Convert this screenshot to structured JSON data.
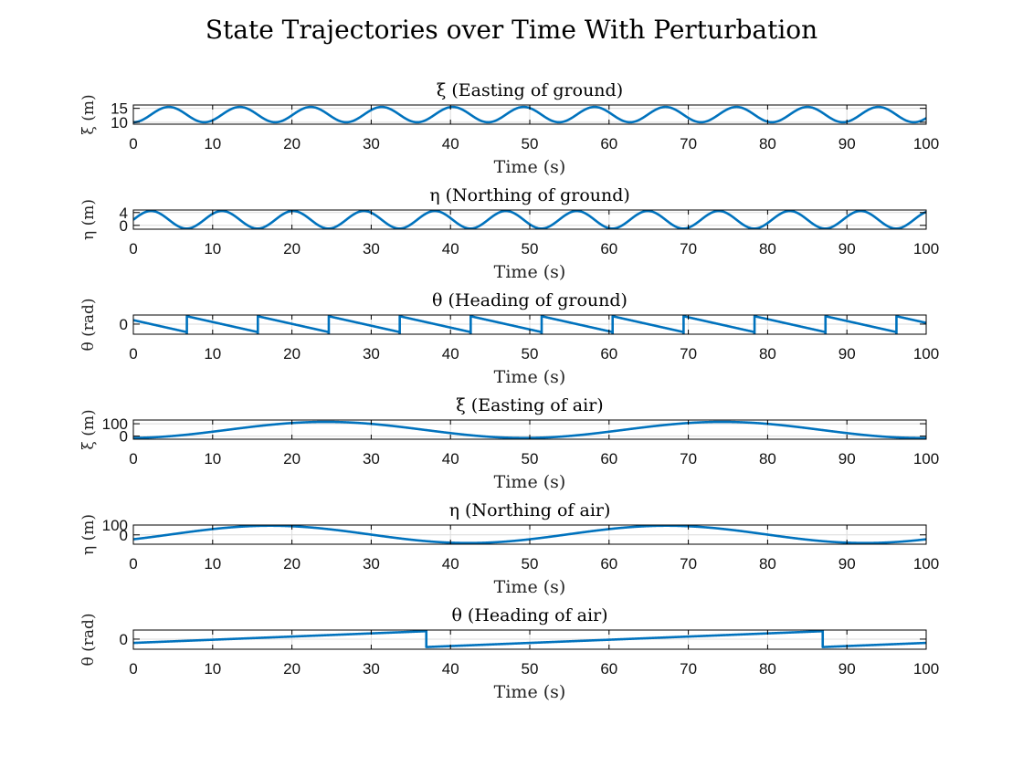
{
  "figure_title": "State Trajectories over Time With Perturbation",
  "colors": {
    "line": "#0072BD"
  },
  "chart_data": [
    {
      "type": "line",
      "title": "ξ (Easting of ground)",
      "xlabel": "Time (s)",
      "ylabel": "ξ (m)",
      "xlim": [
        0,
        100
      ],
      "ylim": [
        9.3,
        16.2
      ],
      "xticks": [
        0,
        10,
        20,
        30,
        40,
        50,
        60,
        70,
        80,
        90,
        100
      ],
      "yticks": [
        10,
        15
      ],
      "grid": true,
      "series": [
        {
          "kind": "sine",
          "mean": 12.75,
          "amplitude": 2.75,
          "period": 8.95,
          "phase": -1.5708
        }
      ]
    },
    {
      "type": "line",
      "title": "η (Northing of ground)",
      "xlabel": "Time (s)",
      "ylabel": "η (m)",
      "xlim": [
        0,
        100
      ],
      "ylim": [
        -1.2,
        4.8
      ],
      "xticks": [
        0,
        10,
        20,
        30,
        40,
        50,
        60,
        70,
        80,
        90,
        100
      ],
      "yticks": [
        0,
        4
      ],
      "grid": true,
      "series": [
        {
          "kind": "sine",
          "mean": 1.75,
          "amplitude": 2.75,
          "period": 8.95,
          "phase": 0
        }
      ]
    },
    {
      "type": "line",
      "title": "θ (Heading of ground)",
      "xlabel": "Time (s)",
      "ylabel": "θ (rad)",
      "xlim": [
        0,
        100
      ],
      "ylim": [
        -4.0,
        3.6
      ],
      "xticks": [
        0,
        10,
        20,
        30,
        40,
        50,
        60,
        70,
        80,
        90,
        100
      ],
      "yticks": [
        0
      ],
      "grid": true,
      "series": [
        {
          "kind": "sawtooth",
          "start": 1.57,
          "slope": -0.7019,
          "low": -3.1416,
          "high": 3.1416
        }
      ]
    },
    {
      "type": "line",
      "title": "ξ (Easting of air)",
      "xlabel": "Time (s)",
      "ylabel": "ξ (m)",
      "xlim": [
        0,
        100
      ],
      "ylim": [
        -25,
        130
      ],
      "xticks": [
        0,
        10,
        20,
        30,
        40,
        50,
        60,
        70,
        80,
        90,
        100
      ],
      "yticks": [
        0,
        100
      ],
      "grid": true,
      "series": [
        {
          "kind": "sine",
          "mean": 50,
          "amplitude": 65,
          "period": 50,
          "phase": -1.48
        }
      ]
    },
    {
      "type": "line",
      "title": "η (Northing of air)",
      "xlabel": "Time (s)",
      "ylabel": "η (m)",
      "xlim": [
        0,
        100
      ],
      "ylim": [
        -95,
        100
      ],
      "xticks": [
        0,
        10,
        20,
        30,
        40,
        50,
        60,
        70,
        80,
        90,
        100
      ],
      "yticks": [
        0,
        100
      ],
      "grid": true,
      "series": [
        {
          "kind": "sine",
          "mean": 5,
          "amplitude": 88,
          "period": 50,
          "phase": -0.6
        }
      ]
    },
    {
      "type": "line",
      "title": "θ (Heading of air)",
      "xlabel": "Time (s)",
      "ylabel": "θ (rad)",
      "xlim": [
        0,
        100
      ],
      "ylim": [
        -4.0,
        3.6
      ],
      "xticks": [
        0,
        10,
        20,
        30,
        40,
        50,
        60,
        70,
        80,
        90,
        100
      ],
      "yticks": [
        0
      ],
      "grid": true,
      "series": [
        {
          "kind": "sawtooth",
          "start": -1.5,
          "slope": 0.1257,
          "low": -3.1416,
          "high": 3.1416
        }
      ]
    }
  ]
}
